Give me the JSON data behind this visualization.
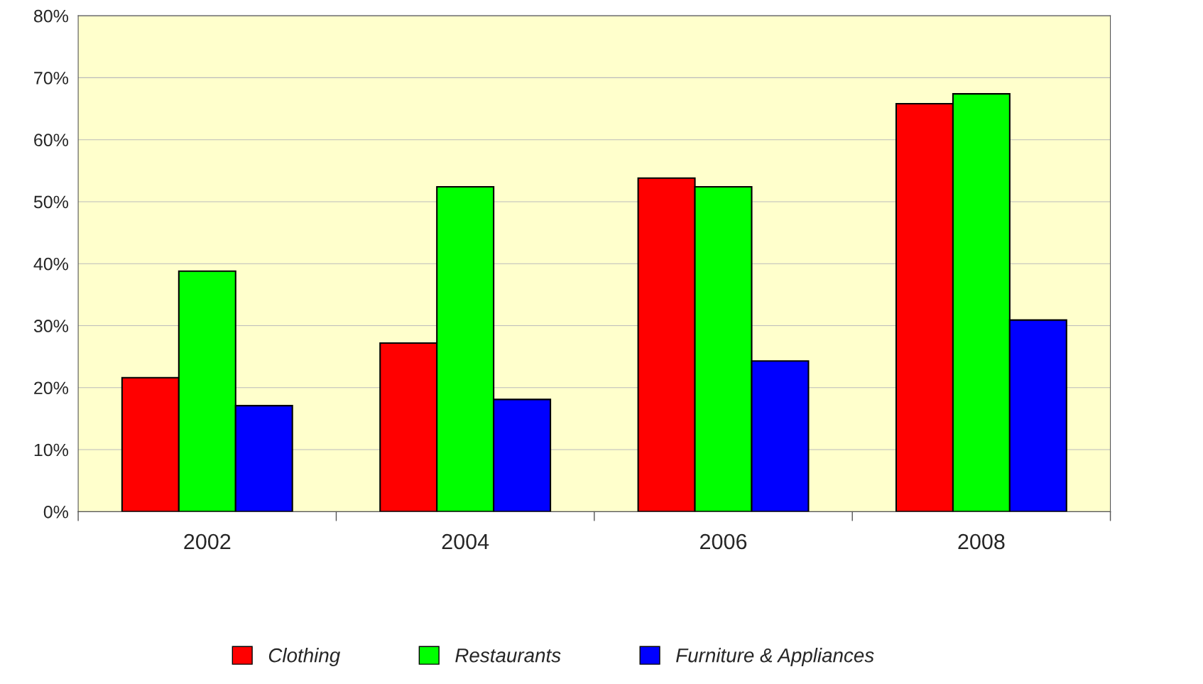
{
  "chart_data": {
    "type": "bar",
    "categories": [
      "2002",
      "2004",
      "2006",
      "2008"
    ],
    "series": [
      {
        "name": "Clothing",
        "color": "#ff0000",
        "values": [
          21.6,
          27.2,
          53.8,
          65.8
        ]
      },
      {
        "name": "Restaurants",
        "color": "#00ff00",
        "values": [
          38.8,
          52.4,
          52.4,
          67.4
        ]
      },
      {
        "name": "Furniture & Appliances",
        "color": "#0000ff",
        "values": [
          17.1,
          18.1,
          24.3,
          30.9
        ]
      }
    ],
    "ylim": [
      0,
      80
    ],
    "yticks": [
      {
        "value": 0,
        "label": "0%"
      },
      {
        "value": 10,
        "label": "10%"
      },
      {
        "value": 20,
        "label": "20%"
      },
      {
        "value": 30,
        "label": "30%"
      },
      {
        "value": 40,
        "label": "40%"
      },
      {
        "value": 50,
        "label": "50%"
      },
      {
        "value": 60,
        "label": "60%"
      },
      {
        "value": 70,
        "label": "70%"
      },
      {
        "value": 80,
        "label": "80%"
      }
    ],
    "grid": "y",
    "legend": "bottom"
  }
}
